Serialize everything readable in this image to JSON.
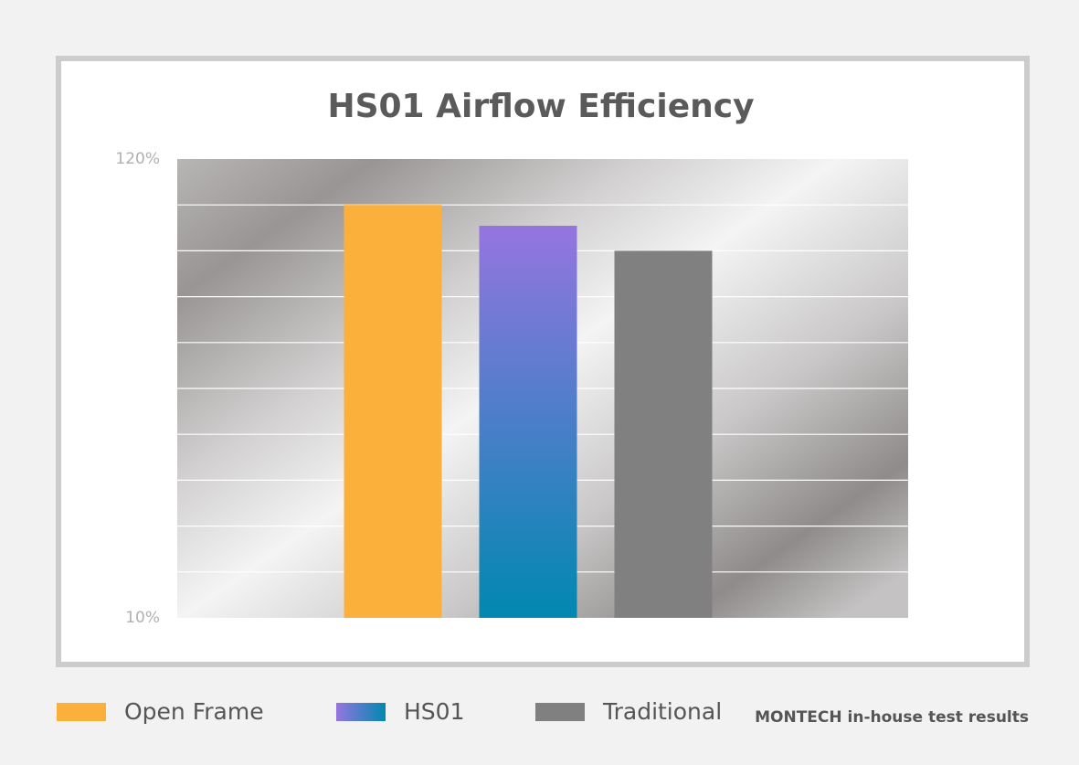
{
  "chart_data": {
    "type": "bar",
    "title": "HS01 Airflow Efficiency",
    "categories": [
      "Open Frame",
      "HS01",
      "Traditional"
    ],
    "values": [
      109,
      104,
      98
    ],
    "colors": [
      "#fbb03b",
      [
        "#9575e0",
        "#0088b0"
      ],
      "#808080"
    ],
    "ylim": [
      10,
      120
    ],
    "yticks": [
      {
        "value": 10,
        "label": "10%"
      },
      {
        "value": 120,
        "label": "120%"
      }
    ],
    "grid_lines": [
      21,
      32,
      43,
      54,
      65,
      76,
      87,
      98,
      109
    ],
    "grid": true,
    "legend": "bottom",
    "footnote": "MONTECH in-house test results"
  }
}
